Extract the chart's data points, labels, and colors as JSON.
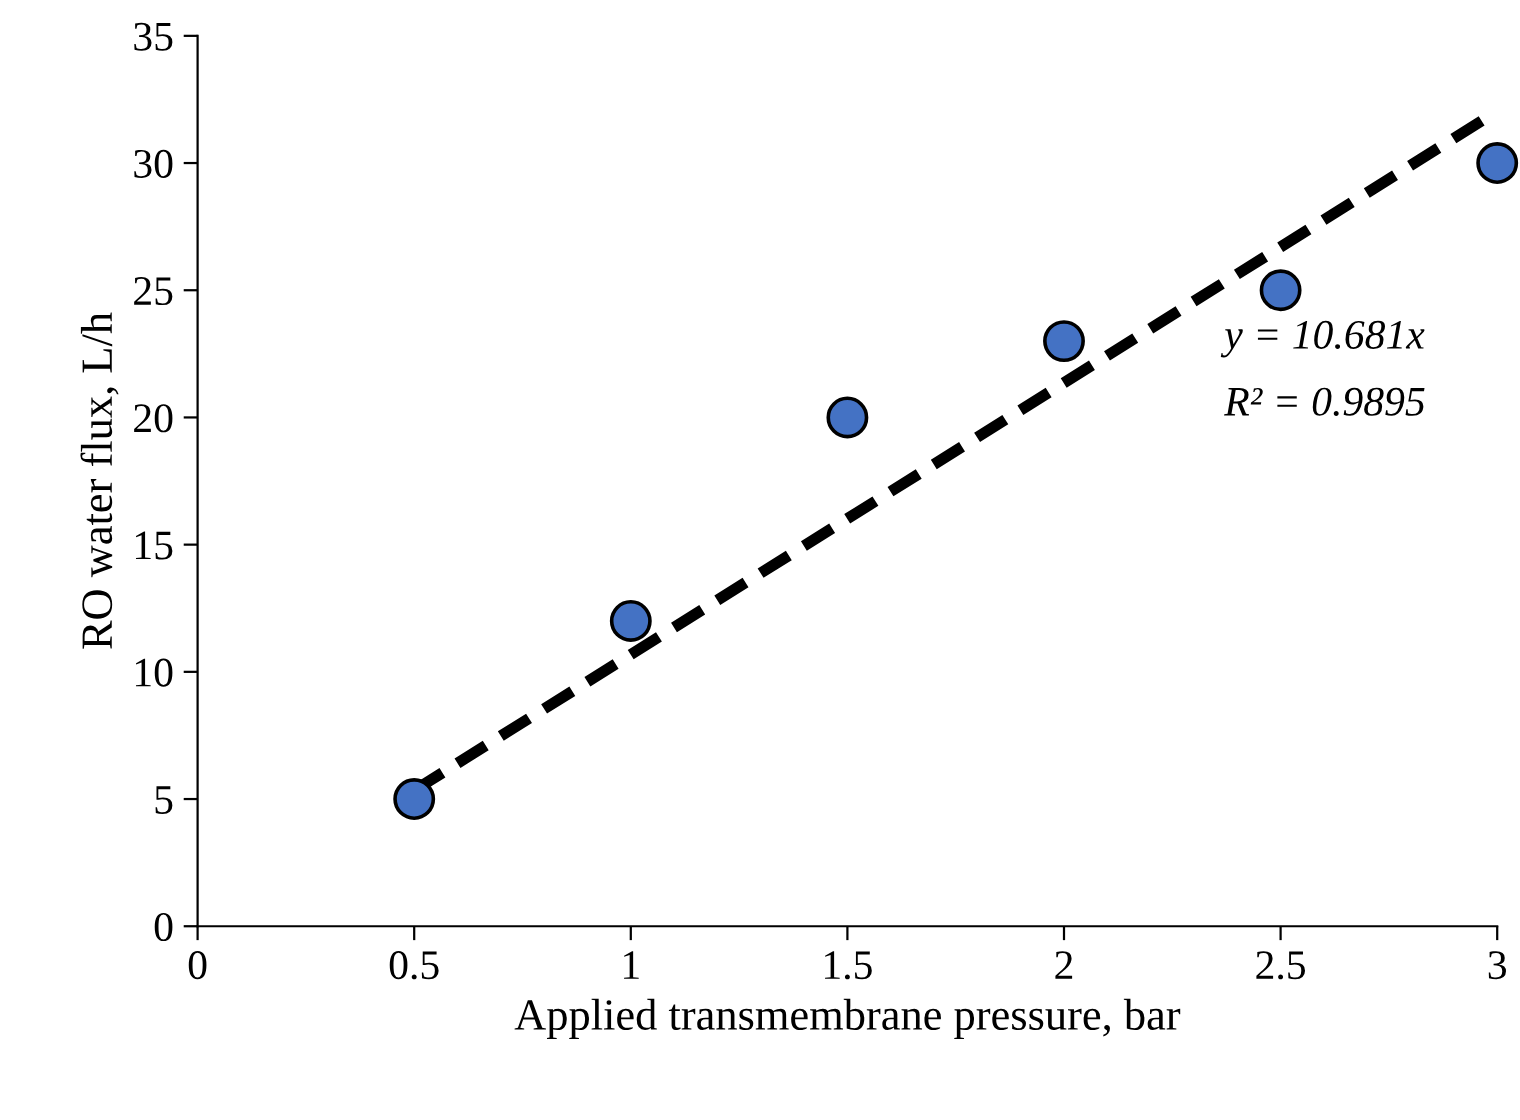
{
  "chart_data": {
    "type": "scatter",
    "xlabel": "Applied transmembrane pressure, bar",
    "ylabel": "RO water flux, L/h",
    "x": [
      0.5,
      1,
      1.5,
      2,
      2.5,
      3
    ],
    "series": [
      {
        "color": "#4472c4",
        "marker": "circle",
        "values": [
          5,
          12,
          20,
          23,
          25,
          30
        ]
      },
      {
        "type": "line",
        "color": "#000000",
        "line_style": "dashed",
        "marker": "none",
        "x": [
          0.5,
          2.97
        ],
        "values": [
          5.34,
          31.72
        ]
      }
    ],
    "annotations": [
      "y = 10.681x",
      "R² = 0.9895"
    ],
    "xlim": [
      0,
      3
    ],
    "xticks": [
      0,
      0.5,
      1,
      1.5,
      2,
      2.5,
      3
    ],
    "ylim": [
      0,
      35
    ],
    "yticks": [
      0,
      5,
      10,
      15,
      20,
      25,
      30,
      35
    ],
    "grid": false,
    "legend": false
  }
}
